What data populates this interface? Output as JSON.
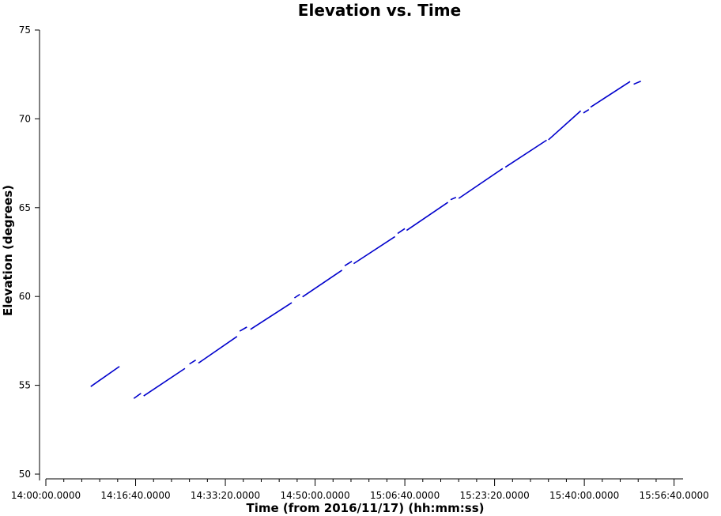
{
  "chart_data": {
    "type": "line",
    "title": "Elevation vs. Time",
    "xlabel": "Time (from 2016/11/17) (hh:mm:ss)",
    "ylabel": "Elevation (degrees)",
    "x_tick_labels": [
      "14:00:00.0000",
      "14:16:40.0000",
      "14:33:20.0000",
      "14:50:00.0000",
      "15:06:40.0000",
      "15:23:20.0000",
      "15:40:00.0000",
      "15:56:40.0000"
    ],
    "y_tick_labels": [
      "50",
      "55",
      "60",
      "65",
      "70",
      "75"
    ],
    "xlim": [
      "14:00:00",
      "15:58:20"
    ],
    "ylim": [
      50,
      75
    ],
    "grid": false,
    "series_color": "#0000cc",
    "series": [
      {
        "segments": [
          [
            [
              "14:08:20",
              54.93
            ],
            [
              "14:13:40",
              56.06
            ]
          ],
          [
            [
              "14:16:20",
              54.26
            ],
            [
              "14:17:40",
              54.55
            ]
          ],
          [
            [
              "14:18:10",
              54.4
            ],
            [
              "14:25:50",
              55.95
            ]
          ],
          [
            [
              "14:26:40",
              56.2
            ],
            [
              "14:27:50",
              56.42
            ]
          ],
          [
            [
              "14:28:20",
              56.25
            ],
            [
              "14:35:30",
              57.75
            ]
          ],
          [
            [
              "14:36:00",
              58.05
            ],
            [
              "14:37:20",
              58.28
            ]
          ],
          [
            [
              "14:38:00",
              58.15
            ],
            [
              "14:45:40",
              59.65
            ]
          ],
          [
            [
              "14:46:10",
              59.92
            ],
            [
              "14:47:10",
              60.12
            ]
          ],
          [
            [
              "14:47:40",
              59.98
            ],
            [
              "14:55:00",
              61.48
            ]
          ],
          [
            [
              "14:55:30",
              61.73
            ],
            [
              "14:56:50",
              61.98
            ]
          ],
          [
            [
              "14:57:10",
              61.85
            ],
            [
              "15:04:50",
              63.37
            ]
          ],
          [
            [
              "15:05:20",
              63.55
            ],
            [
              "15:06:40",
              63.82
            ]
          ],
          [
            [
              "15:07:00",
              63.72
            ],
            [
              "15:14:40",
              65.3
            ]
          ],
          [
            [
              "15:15:10",
              65.45
            ],
            [
              "15:16:10",
              65.58
            ]
          ],
          [
            [
              "15:16:40",
              65.52
            ],
            [
              "15:24:50",
              67.2
            ]
          ],
          [
            [
              "15:25:20",
              67.28
            ],
            [
              "15:33:00",
              68.8
            ]
          ],
          [
            [
              "15:33:20",
              68.82
            ],
            [
              "15:39:20",
              70.45
            ]
          ],
          [
            [
              "15:39:50",
              70.33
            ],
            [
              "15:40:50",
              70.52
            ]
          ],
          [
            [
              "15:41:10",
              70.66
            ],
            [
              "15:48:30",
              72.1
            ]
          ],
          [
            [
              "15:49:10",
              71.95
            ],
            [
              "15:50:30",
              72.12
            ]
          ]
        ]
      }
    ]
  }
}
